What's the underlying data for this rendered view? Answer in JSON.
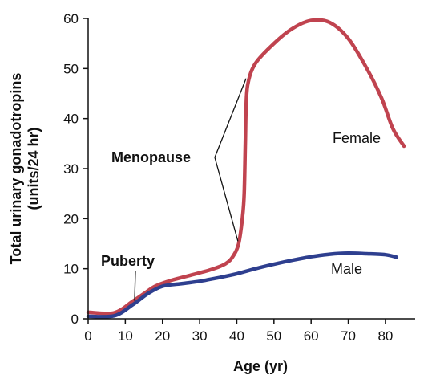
{
  "chart_data": {
    "type": "line",
    "xlabel": "Age (yr)",
    "ylabel": [
      "Total urinary gonadotropins",
      "(units/24 hr)"
    ],
    "xlim": [
      0,
      88
    ],
    "ylim": [
      0,
      60
    ],
    "xticks": [
      0,
      10,
      20,
      30,
      40,
      50,
      60,
      70,
      80
    ],
    "yticks": [
      0,
      10,
      20,
      30,
      40,
      50,
      60
    ],
    "grid": false,
    "series": [
      {
        "name": "Female",
        "color": "#c0434f",
        "points": [
          [
            0,
            1.3
          ],
          [
            7,
            1.2
          ],
          [
            12,
            3.5
          ],
          [
            15,
            5
          ],
          [
            18,
            6.5
          ],
          [
            22,
            7.6
          ],
          [
            27,
            8.6
          ],
          [
            33,
            9.8
          ],
          [
            37,
            11
          ],
          [
            39,
            12.5
          ],
          [
            40.5,
            15
          ],
          [
            41.5,
            20
          ],
          [
            42,
            25
          ],
          [
            42.3,
            35
          ],
          [
            42.5,
            42
          ],
          [
            43,
            47
          ],
          [
            45,
            51
          ],
          [
            50,
            55
          ],
          [
            55,
            58
          ],
          [
            60,
            59.6
          ],
          [
            65,
            59.2
          ],
          [
            70,
            56
          ],
          [
            75,
            50
          ],
          [
            79,
            44
          ],
          [
            82,
            38
          ],
          [
            85,
            34.5
          ]
        ]
      },
      {
        "name": "Male",
        "color": "#2e3f8f",
        "points": [
          [
            0,
            0.5
          ],
          [
            7,
            0.6
          ],
          [
            12,
            2.8
          ],
          [
            16,
            5
          ],
          [
            20,
            6.5
          ],
          [
            25,
            7
          ],
          [
            30,
            7.5
          ],
          [
            35,
            8.2
          ],
          [
            40,
            9
          ],
          [
            45,
            10
          ],
          [
            50,
            10.9
          ],
          [
            55,
            11.7
          ],
          [
            60,
            12.4
          ],
          [
            65,
            12.9
          ],
          [
            70,
            13.1
          ],
          [
            75,
            13
          ],
          [
            80,
            12.8
          ],
          [
            83,
            12.3
          ]
        ]
      }
    ],
    "annotations": [
      {
        "text": "Menopause",
        "pointers": [
          [
            42.5,
            48
          ],
          [
            40.3,
            15.5
          ]
        ]
      },
      {
        "text": "Puberty",
        "pointers": [
          [
            12.5,
            3.6
          ]
        ]
      }
    ]
  }
}
